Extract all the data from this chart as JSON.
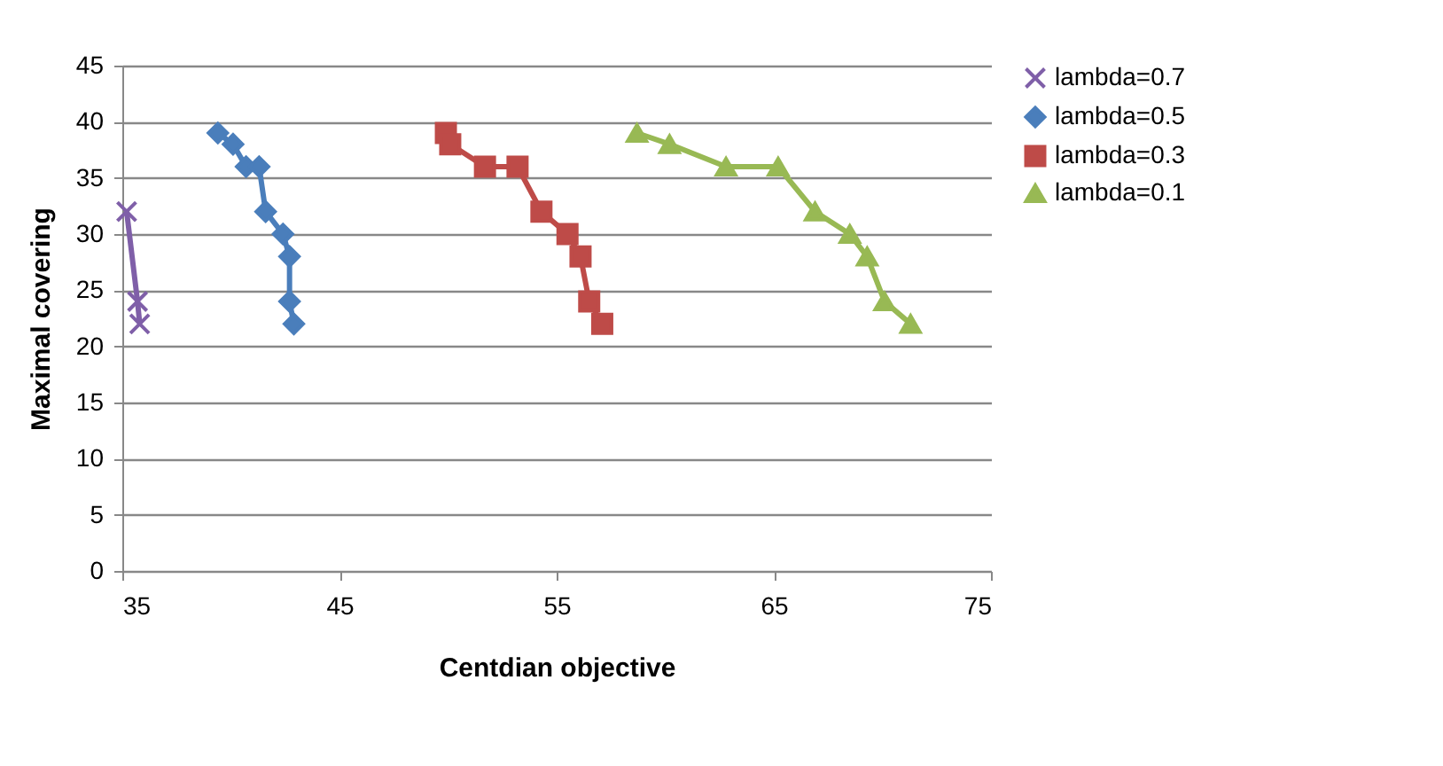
{
  "chart_data": {
    "type": "line",
    "xlabel": "Centdian objective",
    "ylabel": "Maximal covering",
    "xlim": [
      35,
      75
    ],
    "xticks": [
      35,
      45,
      55,
      65,
      75
    ],
    "ylim": [
      0,
      45
    ],
    "yticks": [
      0,
      5,
      10,
      15,
      20,
      25,
      30,
      35,
      40,
      45
    ],
    "grid": "y",
    "legend": "right",
    "line_style": "solid",
    "series": [
      {
        "name": "lambda=0.7",
        "color": "#7f5fa8",
        "marker": "cross",
        "x": [
          35.2,
          35.7,
          35.8
        ],
        "values": [
          32,
          24,
          22
        ]
      },
      {
        "name": "lambda=0.5",
        "color": "#4a7ebb",
        "marker": "diamond",
        "x": [
          39.4,
          40.1,
          40.7,
          41.3,
          41.6,
          42.4,
          42.7,
          42.7,
          42.9
        ],
        "values": [
          39,
          38,
          36,
          36,
          32,
          30,
          28,
          24,
          22
        ]
      },
      {
        "name": "lambda=0.3",
        "color": "#be4b48",
        "marker": "square",
        "x": [
          49.9,
          50.1,
          51.7,
          53.2,
          54.3,
          55.5,
          56.1,
          56.5,
          57.1
        ],
        "values": [
          39,
          38,
          36,
          36,
          32,
          30,
          28,
          24,
          22
        ]
      },
      {
        "name": "lambda=0.1",
        "color": "#98b954",
        "marker": "triangle",
        "x": [
          58.7,
          60.2,
          62.8,
          65.2,
          66.9,
          68.5,
          69.3,
          70.1,
          71.3
        ],
        "values": [
          39,
          38,
          36,
          36,
          32,
          30,
          28,
          24,
          22
        ]
      }
    ]
  }
}
